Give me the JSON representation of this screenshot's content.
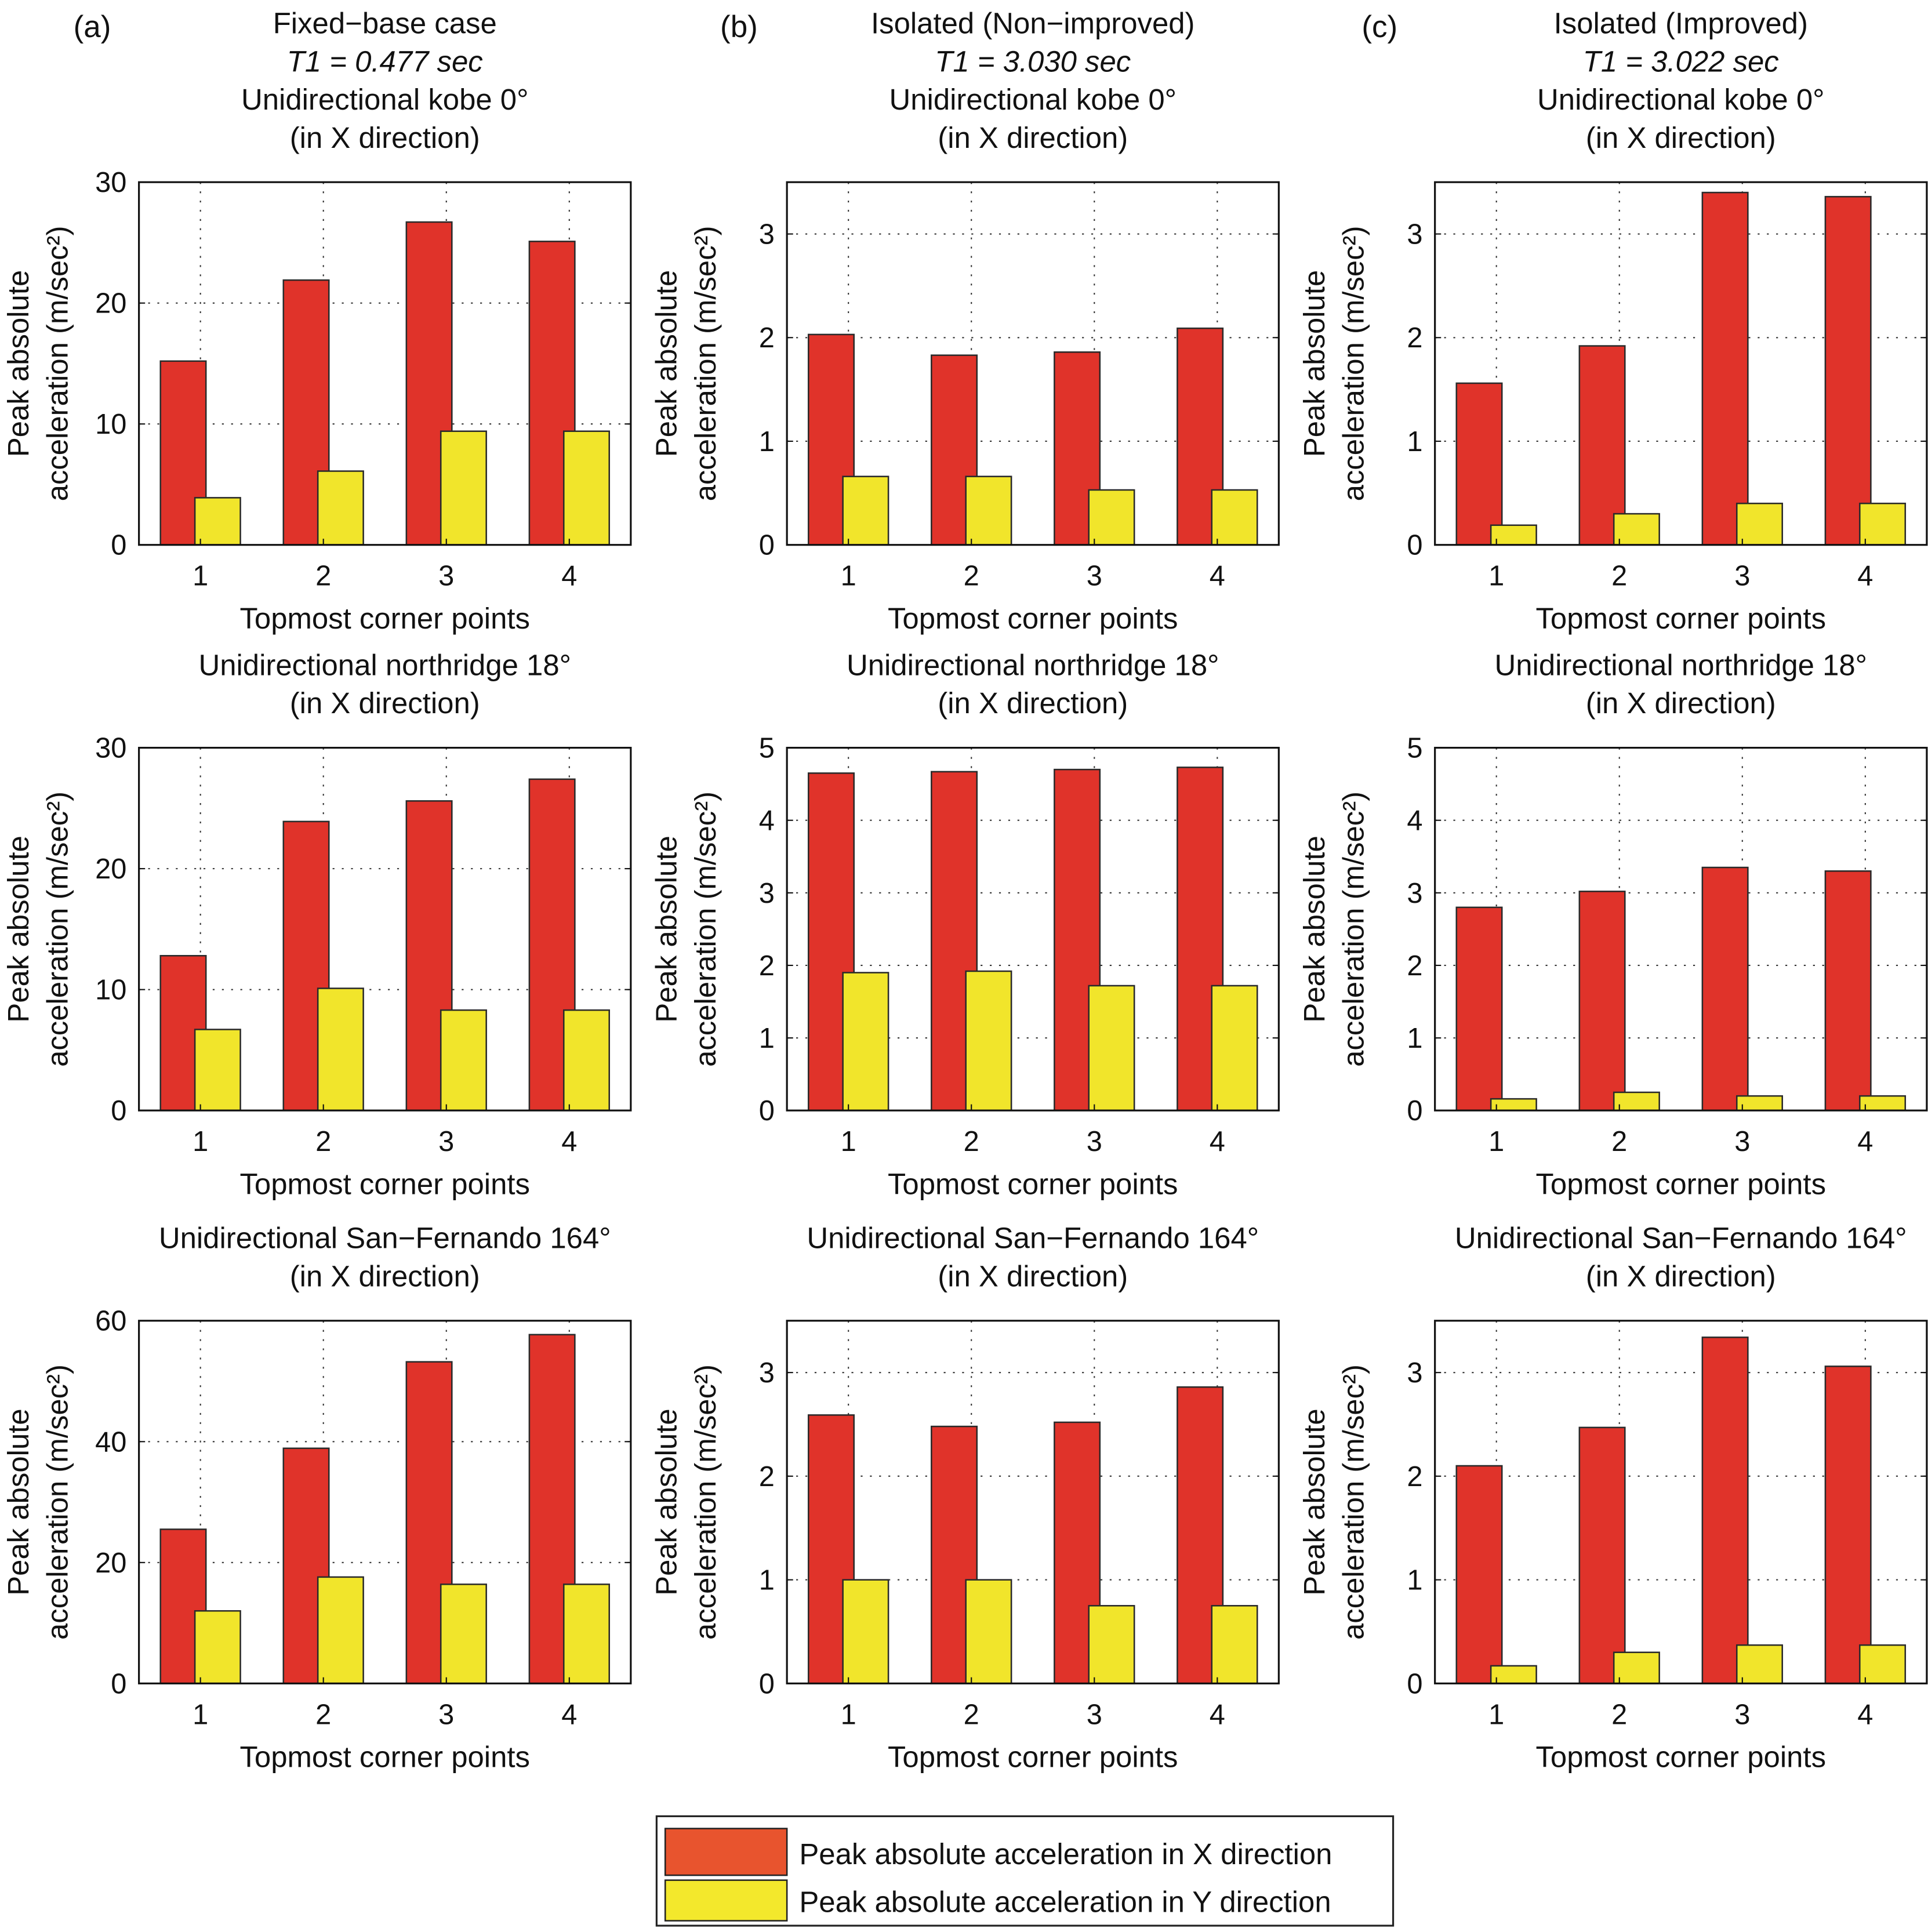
{
  "colors": {
    "x_bar": "#e0332a",
    "y_bar": "#f1e52b",
    "x_legend": "#e8542e",
    "y_legend": "#f3e82c",
    "edge": "#2a2a2a"
  },
  "panel_letters": [
    "(a)",
    "(b)",
    "(c)"
  ],
  "legend": {
    "placement": "bottom-center",
    "entries": [
      "Peak absolute acceleration in X direction",
      "Peak absolute acceleration in Y direction"
    ]
  },
  "chart_data": [
    {
      "type": "bar",
      "title": [
        "Fixed−base case",
        "T1 = 0.477 sec",
        "Unidirectional kobe 0°",
        "(in X direction)"
      ],
      "categories": [
        "1",
        "2",
        "3",
        "4"
      ],
      "ylim": [
        0,
        30
      ],
      "yticks": [
        0,
        10,
        20,
        30
      ],
      "series": [
        {
          "values": [
            15.2,
            21.9,
            26.7,
            25.1
          ]
        },
        {
          "values": [
            3.9,
            6.1,
            9.4,
            9.4
          ]
        }
      ],
      "xlabel": "Topmost corner points",
      "ylabel": [
        "Peak absolute",
        "acceleration (m/sec²)"
      ],
      "grid": true
    },
    {
      "type": "bar",
      "title": [
        "Isolated (Non−improved)",
        "T1 = 3.030 sec",
        "Unidirectional kobe 0°",
        "(in X direction)"
      ],
      "categories": [
        "1",
        "2",
        "3",
        "4"
      ],
      "ylim": [
        0,
        3.5
      ],
      "yticks": [
        0,
        1,
        2,
        3
      ],
      "series": [
        {
          "values": [
            2.03,
            1.83,
            1.86,
            2.09
          ]
        },
        {
          "values": [
            0.66,
            0.66,
            0.53,
            0.53
          ]
        }
      ],
      "xlabel": "Topmost corner points",
      "ylabel": [
        "Peak absolute",
        "acceleration (m/sec²)"
      ],
      "grid": true
    },
    {
      "type": "bar",
      "title": [
        "Isolated (Improved)",
        "T1 = 3.022 sec",
        "Unidirectional kobe 0°",
        "(in X direction)"
      ],
      "categories": [
        "1",
        "2",
        "3",
        "4"
      ],
      "ylim": [
        0,
        3.5
      ],
      "yticks": [
        0,
        1,
        2,
        3
      ],
      "series": [
        {
          "values": [
            1.56,
            1.92,
            3.4,
            3.36
          ]
        },
        {
          "values": [
            0.19,
            0.3,
            0.4,
            0.4
          ]
        }
      ],
      "xlabel": "Topmost corner points",
      "ylabel": [
        "Peak absolute",
        "acceleration (m/sec²)"
      ],
      "grid": true
    },
    {
      "type": "bar",
      "title": [
        "Unidirectional northridge 18°",
        "(in X direction)"
      ],
      "categories": [
        "1",
        "2",
        "3",
        "4"
      ],
      "ylim": [
        0,
        30
      ],
      "yticks": [
        0,
        10,
        20,
        30
      ],
      "series": [
        {
          "values": [
            12.8,
            23.9,
            25.6,
            27.4
          ]
        },
        {
          "values": [
            6.7,
            10.1,
            8.3,
            8.3
          ]
        }
      ],
      "xlabel": "Topmost corner points",
      "ylabel": [
        "Peak absolute",
        "acceleration (m/sec²)"
      ],
      "grid": true
    },
    {
      "type": "bar",
      "title": [
        "Unidirectional northridge 18°",
        "(in X direction)"
      ],
      "categories": [
        "1",
        "2",
        "3",
        "4"
      ],
      "ylim": [
        0,
        5
      ],
      "yticks": [
        0,
        1,
        2,
        3,
        4,
        5
      ],
      "series": [
        {
          "values": [
            4.65,
            4.67,
            4.7,
            4.73
          ]
        },
        {
          "values": [
            1.9,
            1.92,
            1.72,
            1.72
          ]
        }
      ],
      "xlabel": "Topmost corner points",
      "ylabel": [
        "Peak absolute",
        "acceleration (m/sec²)"
      ],
      "grid": true
    },
    {
      "type": "bar",
      "title": [
        "Unidirectional northridge 18°",
        "(in X direction)"
      ],
      "categories": [
        "1",
        "2",
        "3",
        "4"
      ],
      "ylim": [
        0,
        5
      ],
      "yticks": [
        0,
        1,
        2,
        3,
        4,
        5
      ],
      "series": [
        {
          "values": [
            2.8,
            3.02,
            3.35,
            3.3
          ]
        },
        {
          "values": [
            0.16,
            0.25,
            0.2,
            0.2
          ]
        }
      ],
      "xlabel": "Topmost corner points",
      "ylabel": [
        "Peak absolute",
        "acceleration (m/sec²)"
      ],
      "grid": true
    },
    {
      "type": "bar",
      "title": [
        "Unidirectional San−Fernando 164°",
        "(in X direction)"
      ],
      "categories": [
        "1",
        "2",
        "3",
        "4"
      ],
      "ylim": [
        0,
        60
      ],
      "yticks": [
        0,
        20,
        40,
        60
      ],
      "series": [
        {
          "values": [
            25.5,
            38.9,
            53.2,
            57.7
          ]
        },
        {
          "values": [
            12.0,
            17.6,
            16.4,
            16.4
          ]
        }
      ],
      "xlabel": "Topmost corner points",
      "ylabel": [
        "Peak absolute",
        "acceleration (m/sec²)"
      ],
      "grid": true
    },
    {
      "type": "bar",
      "title": [
        "Unidirectional San−Fernando 164°",
        "(in X direction)"
      ],
      "categories": [
        "1",
        "2",
        "3",
        "4"
      ],
      "ylim": [
        0,
        3.5
      ],
      "yticks": [
        0,
        1,
        2,
        3
      ],
      "series": [
        {
          "values": [
            2.59,
            2.48,
            2.52,
            2.86
          ]
        },
        {
          "values": [
            1.0,
            1.0,
            0.75,
            0.75
          ]
        }
      ],
      "xlabel": "Topmost corner points",
      "ylabel": [
        "Peak absolute",
        "acceleration (m/sec²)"
      ],
      "grid": true
    },
    {
      "type": "bar",
      "title": [
        "Unidirectional San−Fernando 164°",
        "(in X direction)"
      ],
      "categories": [
        "1",
        "2",
        "3",
        "4"
      ],
      "ylim": [
        0,
        3.5
      ],
      "yticks": [
        0,
        1,
        2,
        3
      ],
      "series": [
        {
          "values": [
            2.1,
            2.47,
            3.34,
            3.06
          ]
        },
        {
          "values": [
            0.17,
            0.3,
            0.37,
            0.37
          ]
        }
      ],
      "xlabel": "Topmost corner points",
      "ylabel": [
        "Peak absolute",
        "acceleration (m/sec²)"
      ],
      "grid": true
    }
  ]
}
